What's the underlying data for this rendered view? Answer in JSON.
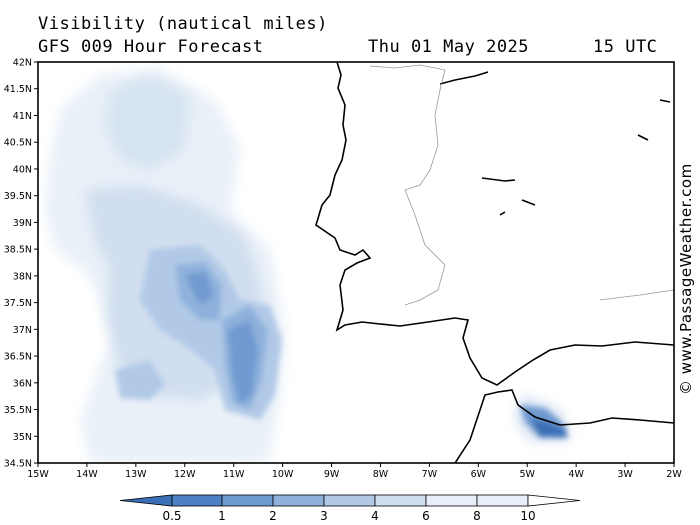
{
  "header": {
    "variable": "Visibility (nautical miles)",
    "model": "GFS 009 Hour Forecast",
    "date": "Thu 01 May 2025",
    "time": "15 UTC"
  },
  "credit": "© www.PassageWeather.com",
  "map": {
    "lon_range": [
      -15,
      -2
    ],
    "lat_range": [
      34.5,
      42
    ],
    "lat_labels": [
      "42N",
      "41.5N",
      "41N",
      "40.5N",
      "40N",
      "39.5N",
      "39N",
      "38.5N",
      "38N",
      "37.5N",
      "37N",
      "36.5N",
      "36N",
      "35.5N",
      "35N",
      "34.5N"
    ],
    "lon_labels": [
      "15W",
      "14W",
      "13W",
      "12W",
      "11W",
      "10W",
      "9W",
      "8W",
      "7W",
      "6W",
      "5W",
      "4W",
      "3W",
      "2W"
    ],
    "legend": {
      "labels": [
        "0.5",
        "1",
        "2",
        "3",
        "4",
        "6",
        "8",
        "10"
      ],
      "colors": [
        "#3a6fb5",
        "#4c80c2",
        "#6f9ad0",
        "#8eb1dc",
        "#b1c9e7",
        "#d0deef",
        "#e8eff8"
      ]
    }
  }
}
